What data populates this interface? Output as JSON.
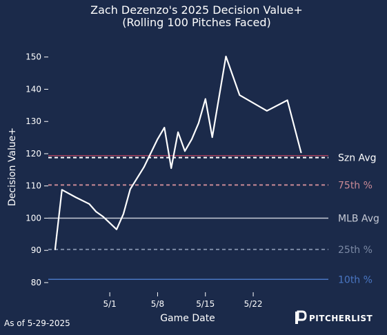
{
  "chart_data": {
    "type": "line",
    "title": "Zach Dezenzo's 2025 Decision Value+",
    "subtitle": "(Rolling 100 Pitches Faced)",
    "xlabel": "Game Date",
    "ylabel": "Decision Value+",
    "x_range": [
      "2025-04-22",
      "2025-06-02"
    ],
    "ylim": [
      77,
      157
    ],
    "y_ticks": [
      80,
      90,
      100,
      110,
      120,
      130,
      140,
      150
    ],
    "x_ticks": [
      {
        "date": "2025-05-01",
        "label": "5/1"
      },
      {
        "date": "2025-05-08",
        "label": "5/8"
      },
      {
        "date": "2025-05-15",
        "label": "5/15"
      },
      {
        "date": "2025-05-22",
        "label": "5/22"
      }
    ],
    "series": [
      {
        "color": "#ffffff",
        "points": [
          {
            "x": "2025-04-23",
            "y": 90.3
          },
          {
            "x": "2025-04-24",
            "y": 108.8
          },
          {
            "x": "2025-04-26",
            "y": 106.5
          },
          {
            "x": "2025-04-28",
            "y": 104.4
          },
          {
            "x": "2025-04-29",
            "y": 102.0
          },
          {
            "x": "2025-04-30",
            "y": 100.5
          },
          {
            "x": "2025-05-02",
            "y": 96.5
          },
          {
            "x": "2025-05-03",
            "y": 101.3
          },
          {
            "x": "2025-05-04",
            "y": 109.0
          },
          {
            "x": "2025-05-06",
            "y": 115.8
          },
          {
            "x": "2025-05-08",
            "y": 124.5
          },
          {
            "x": "2025-05-09",
            "y": 128.1
          },
          {
            "x": "2025-05-10",
            "y": 115.5
          },
          {
            "x": "2025-05-11",
            "y": 126.7
          },
          {
            "x": "2025-05-12",
            "y": 120.8
          },
          {
            "x": "2025-05-13",
            "y": 124.5
          },
          {
            "x": "2025-05-14",
            "y": 129.5
          },
          {
            "x": "2025-05-15",
            "y": 137.0
          },
          {
            "x": "2025-05-16",
            "y": 125.1
          },
          {
            "x": "2025-05-18",
            "y": 150.2
          },
          {
            "x": "2025-05-20",
            "y": 138.2
          },
          {
            "x": "2025-05-24",
            "y": 133.3
          },
          {
            "x": "2025-05-27",
            "y": 136.6
          },
          {
            "x": "2025-05-29",
            "y": 120.4
          }
        ]
      }
    ],
    "reference_lines": [
      {
        "label": "Szn Avg",
        "y": 118.8,
        "color": "#ffffff",
        "style": "dashed"
      },
      {
        "label": "",
        "y": 119.4,
        "color": "#a3405c",
        "style": "solid"
      },
      {
        "label": "75th %",
        "y": 110.3,
        "color": "#c98a96",
        "style": "dashed"
      },
      {
        "label": "MLB Avg",
        "y": 100.0,
        "color": "#c7cbd6",
        "style": "solid"
      },
      {
        "label": "25th %",
        "y": 90.3,
        "color": "#7c8aa5",
        "style": "dashed"
      },
      {
        "label": "10th %",
        "y": 81.0,
        "color": "#4a77c4",
        "style": "solid"
      }
    ],
    "grid": false,
    "legend": "none",
    "footnote": "As of 5-29-2025",
    "brand": "PITCHERLIST"
  }
}
